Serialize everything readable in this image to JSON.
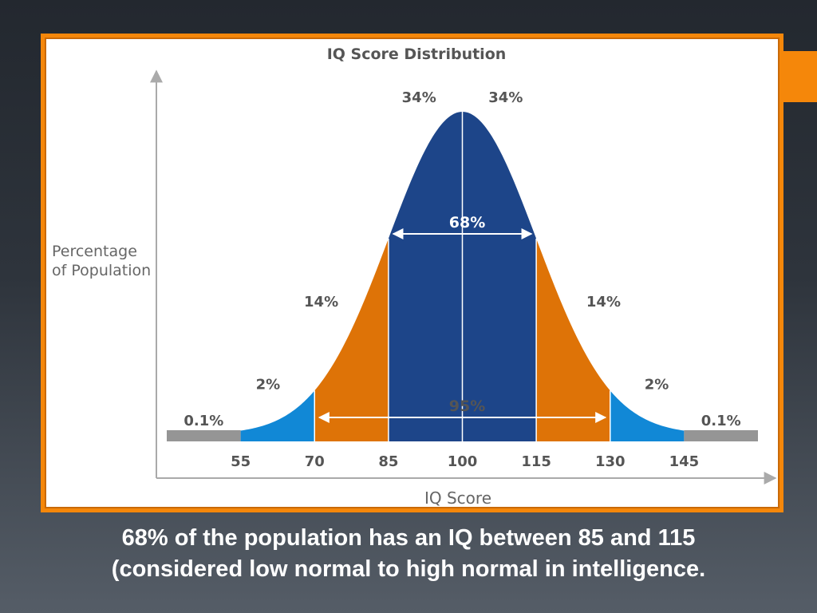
{
  "colors": {
    "background": "#2a3038",
    "frame_accent": "#f5870a",
    "band_center": "#1d4589",
    "band_inner": "#de7307",
    "band_outer": "#1188d6",
    "band_tail": "#959595",
    "text_gray": "#555555",
    "axis": "#aaaaaa"
  },
  "chart_data": {
    "type": "area",
    "title": "IQ Score Distribution",
    "xlabel": "IQ Score",
    "ylabel": [
      "Percentage",
      "of Population"
    ],
    "x_ticks": [
      "55",
      "70",
      "85",
      "100",
      "115",
      "130",
      "145"
    ],
    "distribution": {
      "mean": 100,
      "sd": 15
    },
    "bands": [
      {
        "from": 40,
        "to": 55,
        "percent_label": "0.1%",
        "color": "#959595"
      },
      {
        "from": 55,
        "to": 70,
        "percent_label": "2%",
        "color": "#1188d6"
      },
      {
        "from": 70,
        "to": 85,
        "percent_label": "14%",
        "color": "#de7307"
      },
      {
        "from": 85,
        "to": 100,
        "percent_label": "34%",
        "color": "#1d4589"
      },
      {
        "from": 100,
        "to": 115,
        "percent_label": "34%",
        "color": "#1d4589"
      },
      {
        "from": 115,
        "to": 130,
        "percent_label": "14%",
        "color": "#de7307"
      },
      {
        "from": 130,
        "to": 145,
        "percent_label": "2%",
        "color": "#1188d6"
      },
      {
        "from": 145,
        "to": 160,
        "percent_label": "0.1%",
        "color": "#959595"
      }
    ],
    "ranges": [
      {
        "from": 85,
        "to": 115,
        "label": "68%"
      },
      {
        "from": 70,
        "to": 130,
        "label": "95%"
      }
    ]
  },
  "caption": {
    "line1": "68% of the population has an IQ between 85 and 115",
    "line2": "(considered low normal to high normal in intelligence."
  }
}
